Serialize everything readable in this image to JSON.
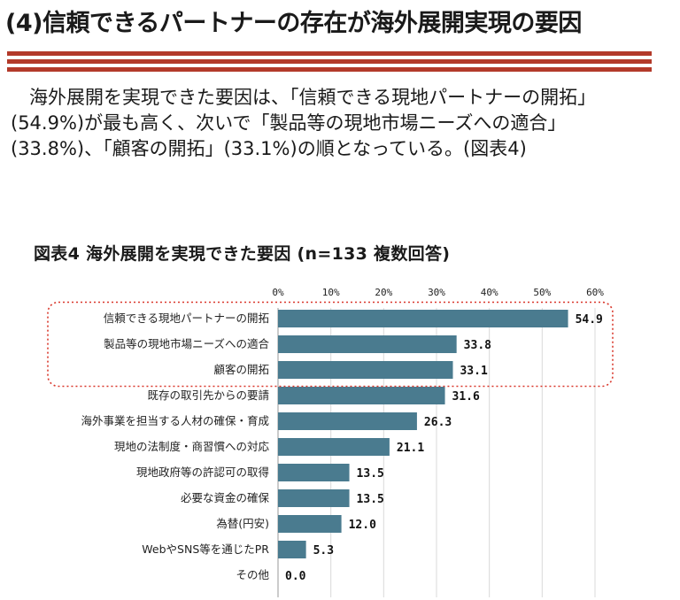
{
  "heading": "(4)信頼できるパートナーの存在が海外展開実現の要因",
  "paragraph": "　海外展開を実現できた要因は、「信頼できる現地パートナーの開拓」(54.9%)が最も高く、次いで「製品等の現地市場ニーズへの適合」(33.8%)、「顧客の開拓」(33.1%)の順となっている。(図表4)",
  "figure_title": "図表4  海外展開を実現できた要因 (n=133  複数回答)",
  "colors": {
    "bar": "#4a7b8f",
    "stripe": "#b33a2a",
    "highlight": "#d9372b",
    "grid": "#d9d9d9"
  },
  "chart_data": {
    "type": "bar",
    "orientation": "horizontal",
    "title": "図表4  海外展開を実現できた要因 (n=133  複数回答)",
    "categories": [
      "信頼できる現地パートナーの開拓",
      "製品等の現地市場ニーズへの適合",
      "顧客の開拓",
      "既存の取引先からの要請",
      "海外事業を担当する人材の確保・育成",
      "現地の法制度・商習慣への対応",
      "現地政府等の許認可の取得",
      "必要な資金の確保",
      "為替(円安)",
      "WebやSNS等を通じたPR",
      "その他"
    ],
    "values": [
      54.9,
      33.8,
      33.1,
      31.6,
      26.3,
      21.1,
      13.5,
      13.5,
      12.0,
      5.3,
      0.0
    ],
    "value_labels": [
      "54.9",
      "33.8",
      "33.1",
      "31.6",
      "26.3",
      "21.1",
      "13.5",
      "13.5",
      "12.0",
      "5.3",
      "0.0"
    ],
    "ticks": [
      "0%",
      "10%",
      "20%",
      "30%",
      "40%",
      "50%",
      "60%"
    ],
    "tick_values": [
      0,
      10,
      20,
      30,
      40,
      50,
      60
    ],
    "xlim": [
      0,
      60
    ],
    "grid": true,
    "highlighted_count": 3
  }
}
